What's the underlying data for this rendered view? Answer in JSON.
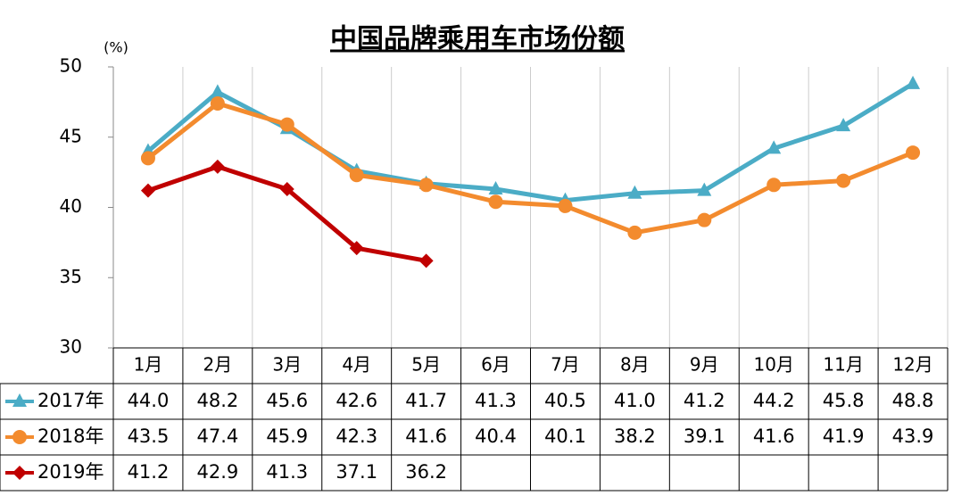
{
  "chart_data": {
    "type": "line",
    "title": "中国品牌乘用车市场份额",
    "y_unit": "(%)",
    "categories": [
      "1月",
      "2月",
      "3月",
      "4月",
      "5月",
      "6月",
      "7月",
      "8月",
      "9月",
      "10月",
      "11月",
      "12月"
    ],
    "series": [
      {
        "name": "2017年",
        "color": "#4bacc6",
        "marker": "triangle",
        "values": [
          44.0,
          48.2,
          45.6,
          42.6,
          41.7,
          41.3,
          40.5,
          41.0,
          41.2,
          44.2,
          45.8,
          48.8
        ],
        "value_labels": [
          "44.0",
          "48.2",
          "45.6",
          "42.6",
          "41.7",
          "41.3",
          "40.5",
          "41.0",
          "41.2",
          "44.2",
          "45.8",
          "48.8"
        ]
      },
      {
        "name": "2018年",
        "color": "#f38b2e",
        "marker": "circle",
        "values": [
          43.5,
          47.4,
          45.9,
          42.3,
          41.6,
          40.4,
          40.1,
          38.2,
          39.1,
          41.6,
          41.9,
          43.9
        ],
        "value_labels": [
          "43.5",
          "47.4",
          "45.9",
          "42.3",
          "41.6",
          "40.4",
          "40.1",
          "38.2",
          "39.1",
          "41.6",
          "41.9",
          "43.9"
        ]
      },
      {
        "name": "2019年",
        "color": "#c00000",
        "marker": "diamond",
        "values": [
          41.2,
          42.9,
          41.3,
          37.1,
          36.2,
          null,
          null,
          null,
          null,
          null,
          null,
          null
        ],
        "value_labels": [
          "41.2",
          "42.9",
          "41.3",
          "37.1",
          "36.2",
          null,
          null,
          null,
          null,
          null,
          null,
          null
        ]
      }
    ],
    "ylim": [
      30,
      50
    ],
    "yticks": [
      30,
      35,
      40,
      45,
      50
    ],
    "data_table": true
  }
}
